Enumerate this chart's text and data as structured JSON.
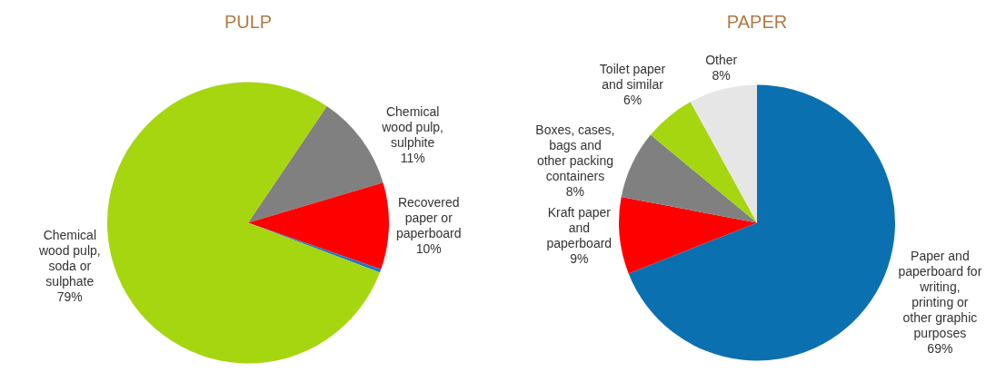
{
  "chart_data": [
    {
      "type": "pie",
      "title": "PULP",
      "categories": [
        "Chemical wood pulp, sulphite",
        "Recovered paper or paperboard",
        null,
        "Chemical wood pulp, soda or sulphate"
      ],
      "values": [
        11,
        10,
        0.4,
        79
      ],
      "value_labels": [
        "11%",
        "10%",
        null,
        "79%"
      ],
      "colors": [
        "#808080",
        "#ff0000",
        "#1f78c8",
        "#a5d610"
      ],
      "legend": false
    },
    {
      "type": "pie",
      "title": "PAPER",
      "categories": [
        "Paper and paperboard for writing, printing or other graphic purposes",
        "Kraft paper and paperboard",
        "Boxes, cases, bags and other packing containers",
        "Toilet paper and similar",
        "Other"
      ],
      "values": [
        69,
        9,
        8,
        6,
        8
      ],
      "value_labels": [
        "69%",
        "9%",
        "8%",
        "6%",
        "8%"
      ],
      "colors": [
        "#0b70b0",
        "#ff0000",
        "#808080",
        "#a5d610",
        "#e6e6e6"
      ],
      "legend": false
    }
  ]
}
